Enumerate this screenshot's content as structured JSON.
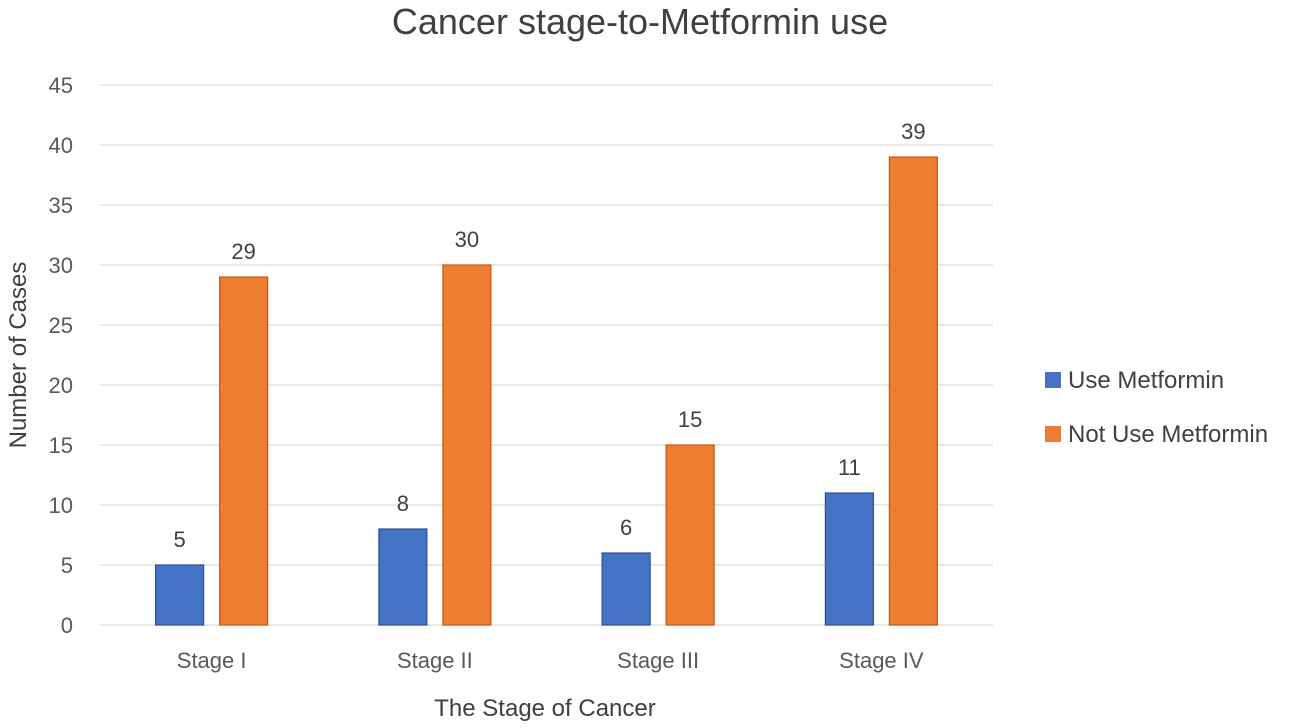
{
  "chart_data": {
    "type": "bar",
    "title": "Cancer stage-to-Metformin use",
    "xlabel": "The Stage of Cancer",
    "ylabel": "Number of Cases",
    "categories": [
      "Stage I",
      "Stage II",
      "Stage III",
      "Stage IV"
    ],
    "series": [
      {
        "name": "Use Metformin",
        "color": "#4472c4",
        "values": [
          5,
          8,
          6,
          11
        ]
      },
      {
        "name": "Not Use Metformin",
        "color": "#ed7d31",
        "values": [
          29,
          30,
          15,
          39
        ]
      }
    ],
    "ylim": [
      0,
      45
    ],
    "yticks": [
      0,
      5,
      10,
      15,
      20,
      25,
      30,
      35,
      40,
      45
    ],
    "grid": true,
    "legend_position": "right",
    "data_labels": true
  }
}
